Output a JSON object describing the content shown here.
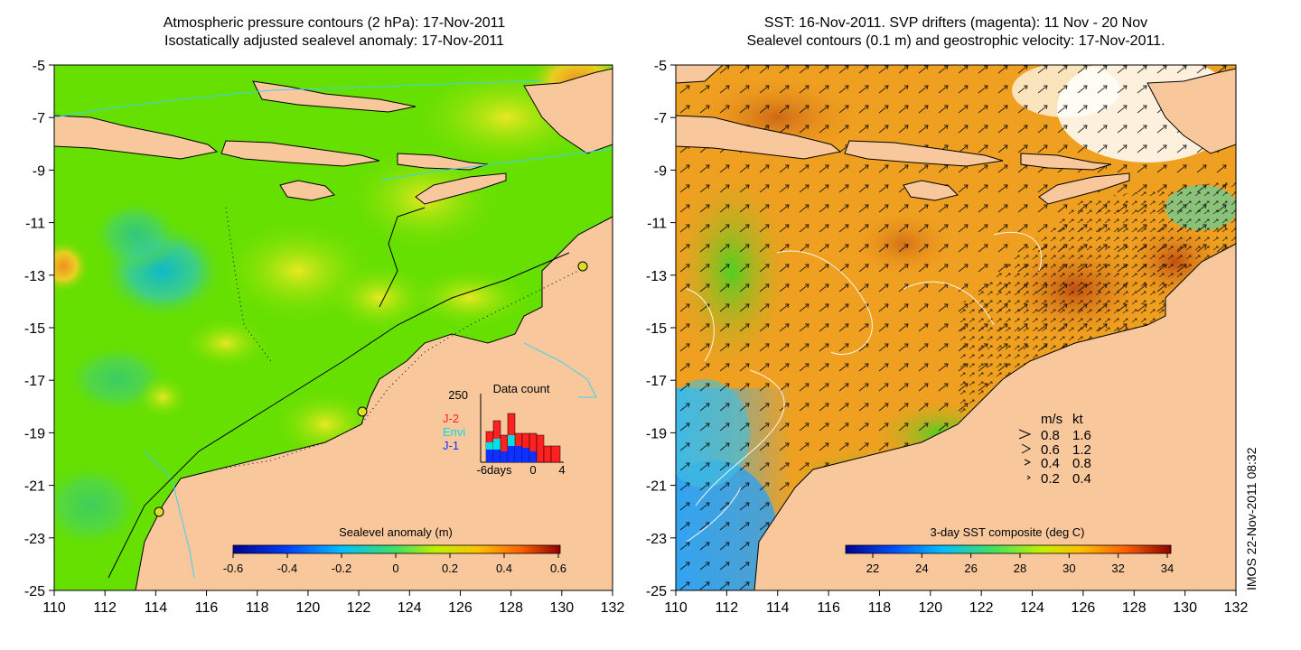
{
  "left_panel": {
    "title_line1": "Atmospheric pressure contours (2 hPa): 17-Nov-2011",
    "title_line2": "Isostatically adjusted sealevel anomaly: 17-Nov-2011",
    "y_ticks": [
      "-5",
      "-7",
      "-9",
      "-11",
      "-13",
      "-15",
      "-17",
      "-19",
      "-21",
      "-23",
      "-25"
    ],
    "x_ticks": [
      "110",
      "112",
      "114",
      "116",
      "118",
      "120",
      "122",
      "124",
      "126",
      "128",
      "130",
      "132"
    ],
    "colorbar_title": "Sealevel anomaly (m)",
    "colorbar_ticks": [
      "-0.6",
      "-0.4",
      "-0.2",
      "0",
      "0.2",
      "0.4",
      "0.6"
    ],
    "inset": {
      "title": "Data count",
      "y_label": "250",
      "x_labels": [
        "-6days",
        "0",
        "4"
      ],
      "legend": [
        {
          "label": "J-2",
          "color": "#ff2020"
        },
        {
          "label": "Envi",
          "color": "#00e0e0"
        },
        {
          "label": "J-1",
          "color": "#1030ff"
        }
      ]
    }
  },
  "right_panel": {
    "title_line1": "SST: 16-Nov-2011. SVP drifters (magenta): 11 Nov - 20 Nov",
    "title_line2": "Sealevel contours (0.1 m) and geostrophic velocity: 17-Nov-2011.",
    "y_ticks": [
      "-5",
      "-7",
      "-9",
      "-11",
      "-13",
      "-15",
      "-17",
      "-19",
      "-21",
      "-23",
      "-25"
    ],
    "x_ticks": [
      "110",
      "112",
      "114",
      "116",
      "118",
      "120",
      "122",
      "124",
      "126",
      "128",
      "130",
      "132"
    ],
    "colorbar_title": "3-day SST composite (deg C)",
    "colorbar_ticks": [
      "22",
      "24",
      "26",
      "28",
      "30",
      "32",
      "34"
    ],
    "speed_legend": {
      "header_ms": "m/s",
      "header_kt": "kt",
      "rows": [
        {
          "ms": "0.8",
          "kt": "1.6"
        },
        {
          "ms": "0.6",
          "kt": "1.2"
        },
        {
          "ms": "0.4",
          "kt": "0.8"
        },
        {
          "ms": "0.2",
          "kt": "0.4"
        }
      ]
    }
  },
  "credit": "IMOS 22-Nov-2011 08:32",
  "colors": {
    "land": "#f8c89c",
    "sla_background": "#66e000",
    "sst_background": "#f0a020",
    "coast": "#000000",
    "isobath": "#40d0f0"
  }
}
